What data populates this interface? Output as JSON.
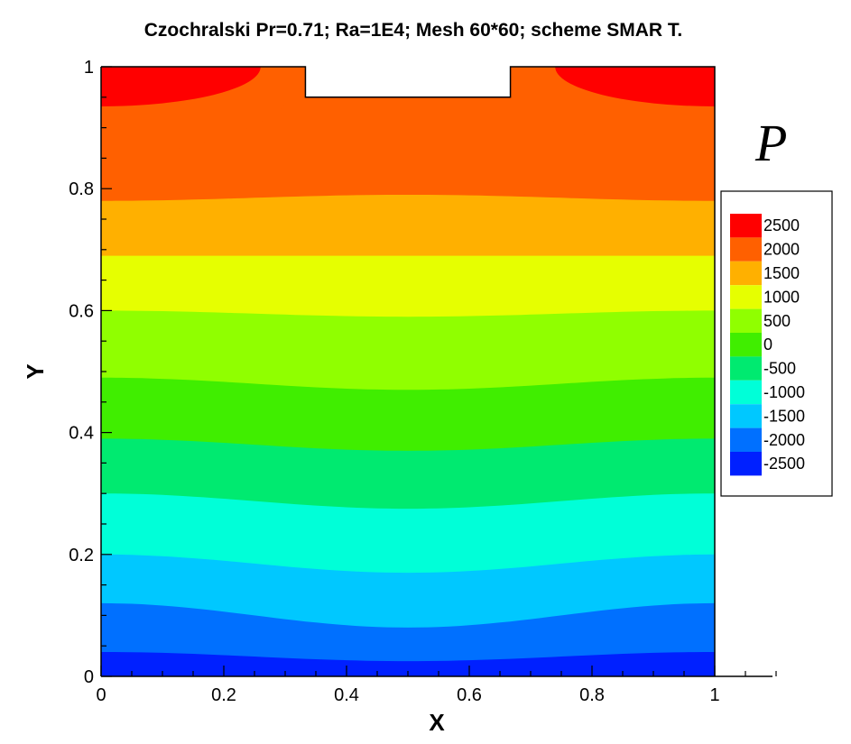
{
  "chart_data": {
    "type": "heatmap",
    "title": "Czochralski Pr=0.71; Ra=1E4; Mesh 60*60; scheme SMAR T.",
    "xlabel": "X",
    "ylabel": "Y",
    "variable_label": "P",
    "xlim": [
      0,
      1.1
    ],
    "ylim": [
      0,
      1
    ],
    "x_ticks": [
      "0",
      "0.2",
      "0.4",
      "0.6",
      "0.8",
      "1"
    ],
    "y_ticks": [
      "0",
      "0.2",
      "0.4",
      "0.6",
      "0.8",
      "1"
    ],
    "domain_notch": {
      "x_range": [
        0.333,
        0.667
      ],
      "y_range": [
        0.95,
        1.0
      ]
    },
    "legend": {
      "placement": "right",
      "levels": [
        {
          "label": "2500",
          "color": "#ff0000"
        },
        {
          "label": "2000",
          "color": "#ff6000"
        },
        {
          "label": "1500",
          "color": "#ffb000"
        },
        {
          "label": "1000",
          "color": "#e6ff00"
        },
        {
          "label": "500",
          "color": "#90ff00"
        },
        {
          "label": "0",
          "color": "#40ee00"
        },
        {
          "label": "-500",
          "color": "#00ea70"
        },
        {
          "label": "-1000",
          "color": "#00ffd8"
        },
        {
          "label": "-1500",
          "color": "#00c8ff"
        },
        {
          "label": "-2000",
          "color": "#0070ff"
        },
        {
          "label": "-2500",
          "color": "#0020ff"
        }
      ]
    },
    "bands": [
      {
        "level": "-2500",
        "upper_edge": {
          "center": 0.025,
          "side": 0.04
        }
      },
      {
        "level": "-2000",
        "upper_edge": {
          "center": 0.08,
          "side": 0.12
        }
      },
      {
        "level": "-1500",
        "upper_edge": {
          "center": 0.17,
          "side": 0.2
        }
      },
      {
        "level": "-1000",
        "upper_edge": {
          "center": 0.275,
          "side": 0.3
        }
      },
      {
        "level": "-500",
        "upper_edge": {
          "center": 0.37,
          "side": 0.39
        }
      },
      {
        "level": "0",
        "upper_edge": {
          "center": 0.47,
          "side": 0.49
        }
      },
      {
        "level": "500",
        "upper_edge": {
          "center": 0.59,
          "side": 0.6
        }
      },
      {
        "level": "1000",
        "upper_edge": {
          "center": 0.69,
          "side": 0.69
        }
      },
      {
        "level": "1500",
        "upper_edge": {
          "center": 0.79,
          "side": 0.78
        }
      },
      {
        "level": "2000",
        "upper_edge": {
          "center": 1.0,
          "side": 1.0
        }
      }
    ],
    "top_blobs": [
      {
        "level": "2000",
        "x_range": [
          0.0,
          0.333
        ],
        "y_bottom": 0.855
      },
      {
        "level": "2000",
        "x_range": [
          0.667,
          1.0
        ],
        "y_bottom": 0.855
      },
      {
        "level": "2500",
        "x_range": [
          0.0,
          0.26
        ],
        "y_bottom": 0.935
      },
      {
        "level": "2500",
        "x_range": [
          0.74,
          1.0
        ],
        "y_bottom": 0.935
      }
    ]
  }
}
